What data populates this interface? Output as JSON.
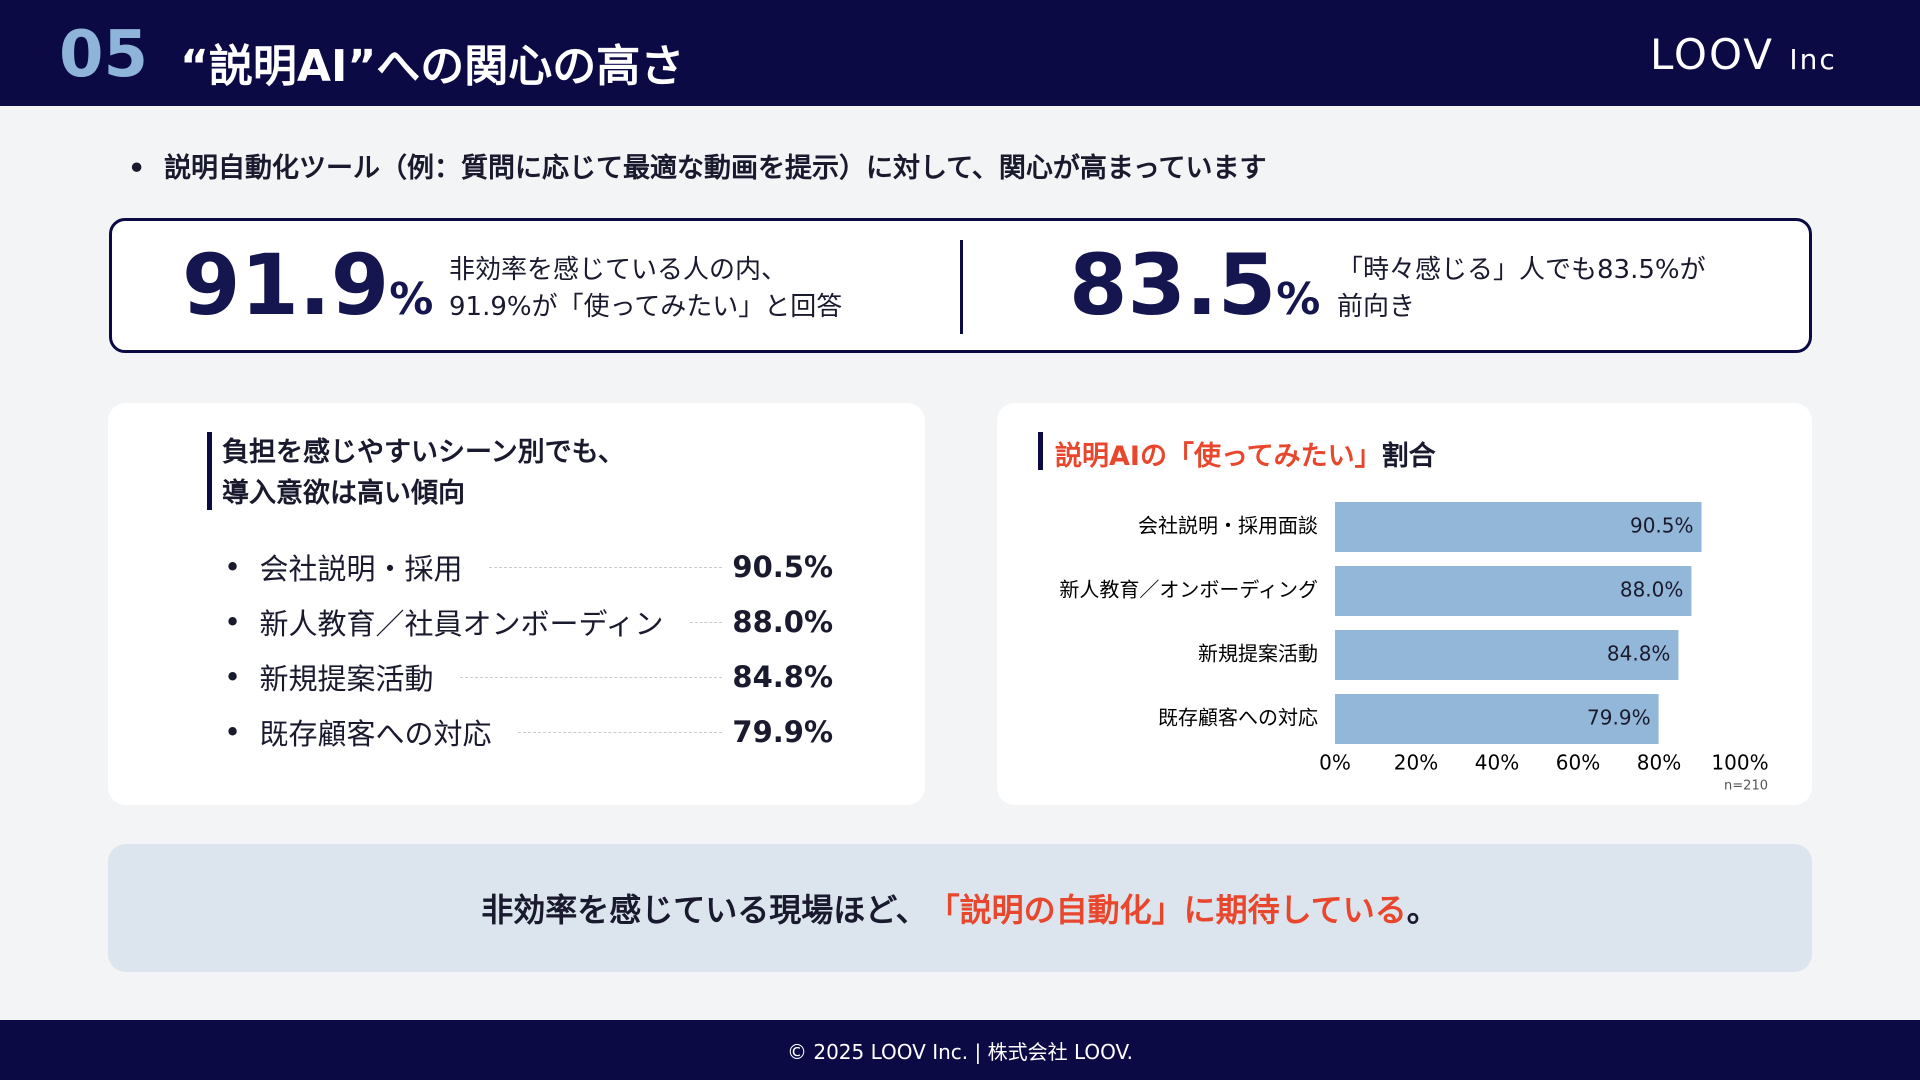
{
  "header": {
    "number": "05",
    "title": "“説明AI”への関心の高さ",
    "logo": "LOOV",
    "logo_suffix": "Inc"
  },
  "bullet": "説明自動化ツール（例：質問に応じて最適な動画を提示）に対して、関心が高まっています",
  "stats": [
    {
      "value": "91.9",
      "unit": "%",
      "lines": [
        "非効率を感じている人の内、",
        "91.9%が「使ってみたい」と回答"
      ]
    },
    {
      "value": "83.5",
      "unit": "%",
      "lines": [
        "「時々感じる」人でも83.5%が",
        "前向き"
      ]
    }
  ],
  "left_panel": {
    "heading": [
      "負担を感じやすいシーン別でも、",
      "導入意欲は高い傾向"
    ],
    "items": [
      {
        "label": "会社説明・採用",
        "value": "90.5%"
      },
      {
        "label": "新人教育／社員オンボーディン",
        "value": "88.0%"
      },
      {
        "label": "新規提案活動",
        "value": "84.8%"
      },
      {
        "label": "既存顧客への対応",
        "value": "79.9%"
      }
    ]
  },
  "chart_data": {
    "type": "barh",
    "title_highlight": "説明AIの「使ってみたい」",
    "title_rest": "割合",
    "categories": [
      "会社説明・採用面談",
      "新人教育／オンボーディング",
      "新規提案活動",
      "既存顧客への対応"
    ],
    "values": [
      90.5,
      88.0,
      84.8,
      79.9
    ],
    "value_labels": [
      "90.5%",
      "88.0%",
      "84.8%",
      "79.9%"
    ],
    "color": "#93b7d8",
    "xlim": [
      0,
      100
    ],
    "xticks": [
      {
        "value": 0,
        "label": "0%"
      },
      {
        "value": 20,
        "label": "20%"
      },
      {
        "value": 40,
        "label": "40%"
      },
      {
        "value": 60,
        "label": "60%"
      },
      {
        "value": 80,
        "label": "80%"
      },
      {
        "value": 100,
        "label": "100%"
      }
    ],
    "note": "n=210"
  },
  "conclusion": {
    "before": "非効率を感じている現場ほど、",
    "highlight": "「説明の自動化」に期待している",
    "after": "。"
  },
  "footer": "© 2025 LOOV Inc. | 株式会社 LOOV."
}
